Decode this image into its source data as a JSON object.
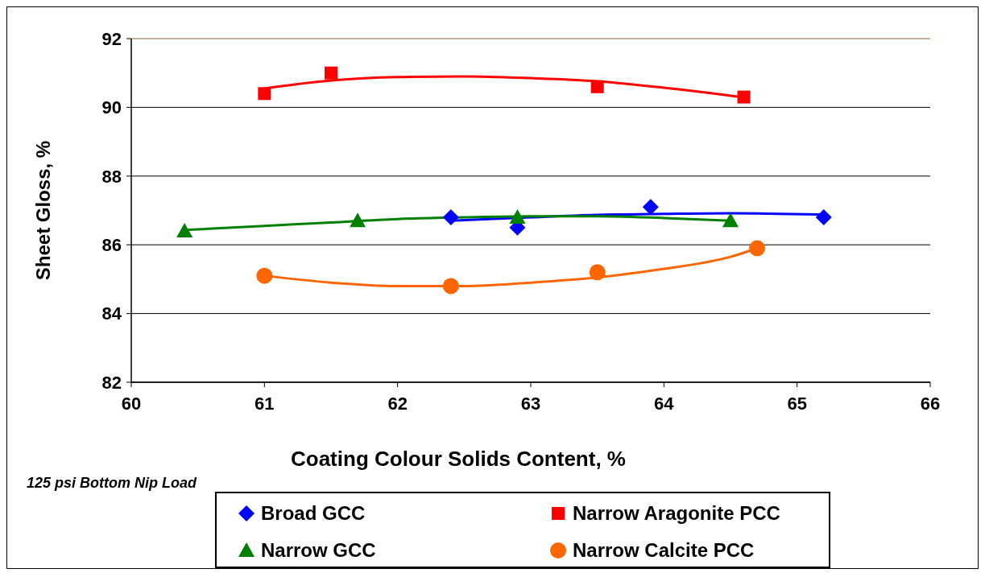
{
  "chart_data": {
    "type": "scatter",
    "xlabel": "Coating Colour Solids Content, %",
    "ylabel": "Sheet Gloss, %",
    "annotations": [
      "125 psi Bottom Nip Load"
    ],
    "xlim": [
      60,
      66
    ],
    "xticks": [
      60,
      61,
      62,
      63,
      64,
      65,
      66
    ],
    "ylim": [
      82,
      92
    ],
    "yticks": [
      82,
      84,
      86,
      88,
      90,
      92
    ],
    "grid": "y",
    "legend": "bottom",
    "series": [
      {
        "name": "Broad GCC",
        "marker": "diamond",
        "color": "#0000ff",
        "x": [
          62.4,
          62.9,
          63.9,
          65.2
        ],
        "values": [
          86.8,
          86.5,
          87.1,
          86.8
        ]
      },
      {
        "name": "Narrow Aragonite PCC",
        "marker": "square",
        "color": "#ff0000",
        "x": [
          61,
          61.5,
          63.5,
          64.6
        ],
        "values": [
          90.4,
          91.0,
          90.6,
          90.3
        ]
      },
      {
        "name": "Narrow GCC",
        "marker": "triangle",
        "color": "#008000",
        "x": [
          60.4,
          61.7,
          62.9,
          64.5
        ],
        "values": [
          86.4,
          86.7,
          86.8,
          86.7
        ]
      },
      {
        "name": "Narrow Calcite PCC",
        "marker": "circle",
        "color": "#ff6600",
        "x": [
          61,
          62.4,
          63.5,
          64.7
        ],
        "values": [
          85.1,
          84.8,
          85.2,
          85.9
        ]
      },
      {
        "type": "line",
        "marker": "none",
        "color": "#0000ff",
        "x": [
          62.4,
          63,
          63.5,
          64,
          64.5,
          65.2
        ],
        "values": [
          86.7,
          86.8,
          86.87,
          86.9,
          86.92,
          86.88
        ]
      },
      {
        "type": "line",
        "marker": "none",
        "color": "#ff0000",
        "x": [
          61,
          61.5,
          62,
          62.5,
          63,
          63.5,
          64,
          64.6
        ],
        "values": [
          90.55,
          90.78,
          90.88,
          90.9,
          90.85,
          90.76,
          90.57,
          90.29
        ]
      },
      {
        "type": "line",
        "marker": "none",
        "color": "#008000",
        "x": [
          60.4,
          61,
          61.5,
          62,
          62.5,
          63,
          63.5,
          64,
          64.5
        ],
        "values": [
          86.43,
          86.55,
          86.65,
          86.75,
          86.8,
          86.83,
          86.83,
          86.78,
          86.7
        ]
      },
      {
        "type": "line",
        "marker": "none",
        "color": "#ff6600",
        "x": [
          61,
          61.5,
          62,
          62.5,
          63,
          63.5,
          64,
          64.5,
          64.7
        ],
        "values": [
          85.1,
          84.9,
          84.8,
          84.8,
          84.9,
          85.05,
          85.3,
          85.65,
          85.9
        ]
      }
    ]
  }
}
